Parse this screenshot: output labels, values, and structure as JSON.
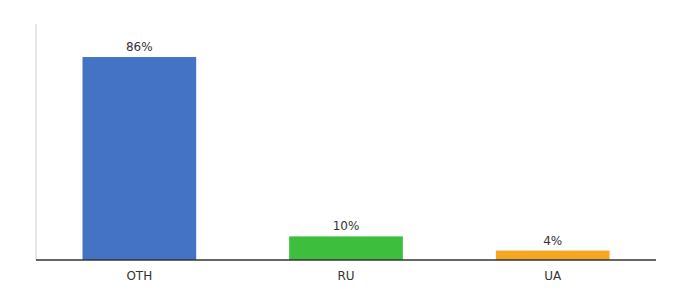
{
  "chart_data": {
    "type": "bar",
    "categories": [
      "OTH",
      "RU",
      "UA"
    ],
    "values": [
      86,
      10,
      4
    ],
    "value_labels": [
      "86%",
      "10%",
      "4%"
    ],
    "colors": [
      "#4472c4",
      "#3dbf3d",
      "#f5a623"
    ],
    "ylim": [
      0,
      100
    ],
    "yticks": [],
    "tick_labels": "x",
    "data_labels": true,
    "grid": false
  }
}
